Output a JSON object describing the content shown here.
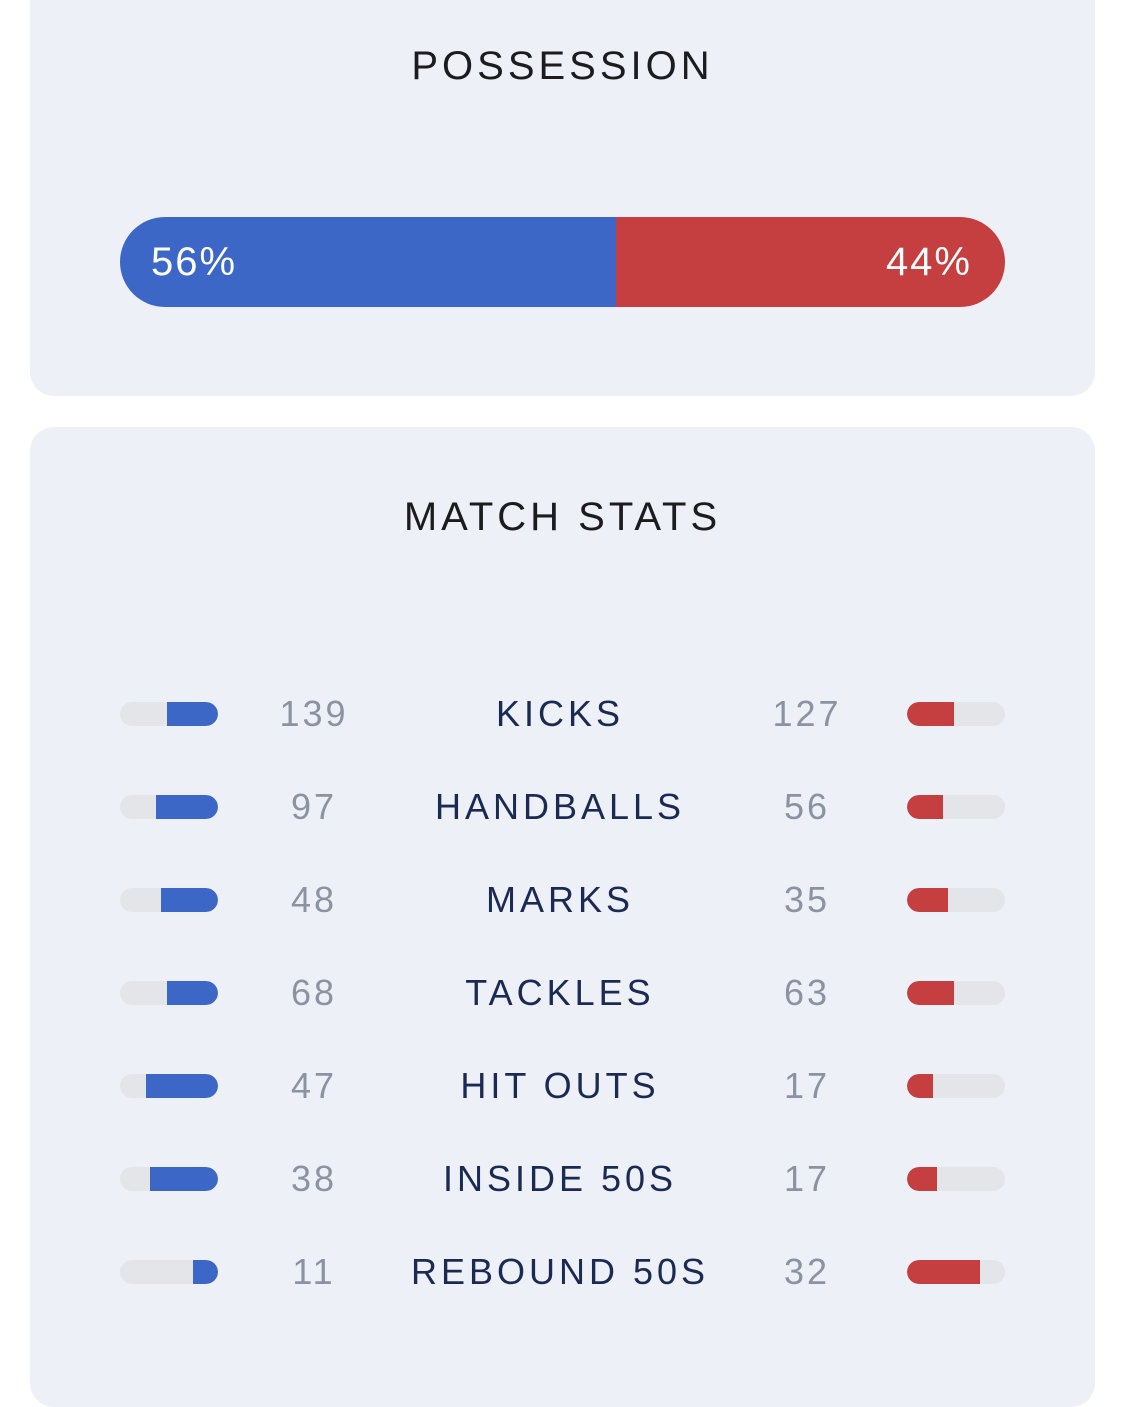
{
  "possession": {
    "title": "POSSESSION",
    "home_pct": 56,
    "away_pct": 44,
    "home_label": "56%",
    "away_label": "44%"
  },
  "match_stats": {
    "title": "MATCH STATS",
    "rows": [
      {
        "label": "KICKS",
        "home": "139",
        "away": "127"
      },
      {
        "label": "HANDBALLS",
        "home": "97",
        "away": "56"
      },
      {
        "label": "MARKS",
        "home": "48",
        "away": "35"
      },
      {
        "label": "TACKLES",
        "home": "68",
        "away": "63"
      },
      {
        "label": "HIT OUTS",
        "home": "47",
        "away": "17"
      },
      {
        "label": "INSIDE 50S",
        "home": "38",
        "away": "17"
      },
      {
        "label": "REBOUND 50S",
        "home": "11",
        "away": "32"
      }
    ]
  },
  "colors": {
    "home": "#3d67c6",
    "away": "#c53e40",
    "track": "#e4e5e8",
    "card": "#edf0f7"
  }
}
